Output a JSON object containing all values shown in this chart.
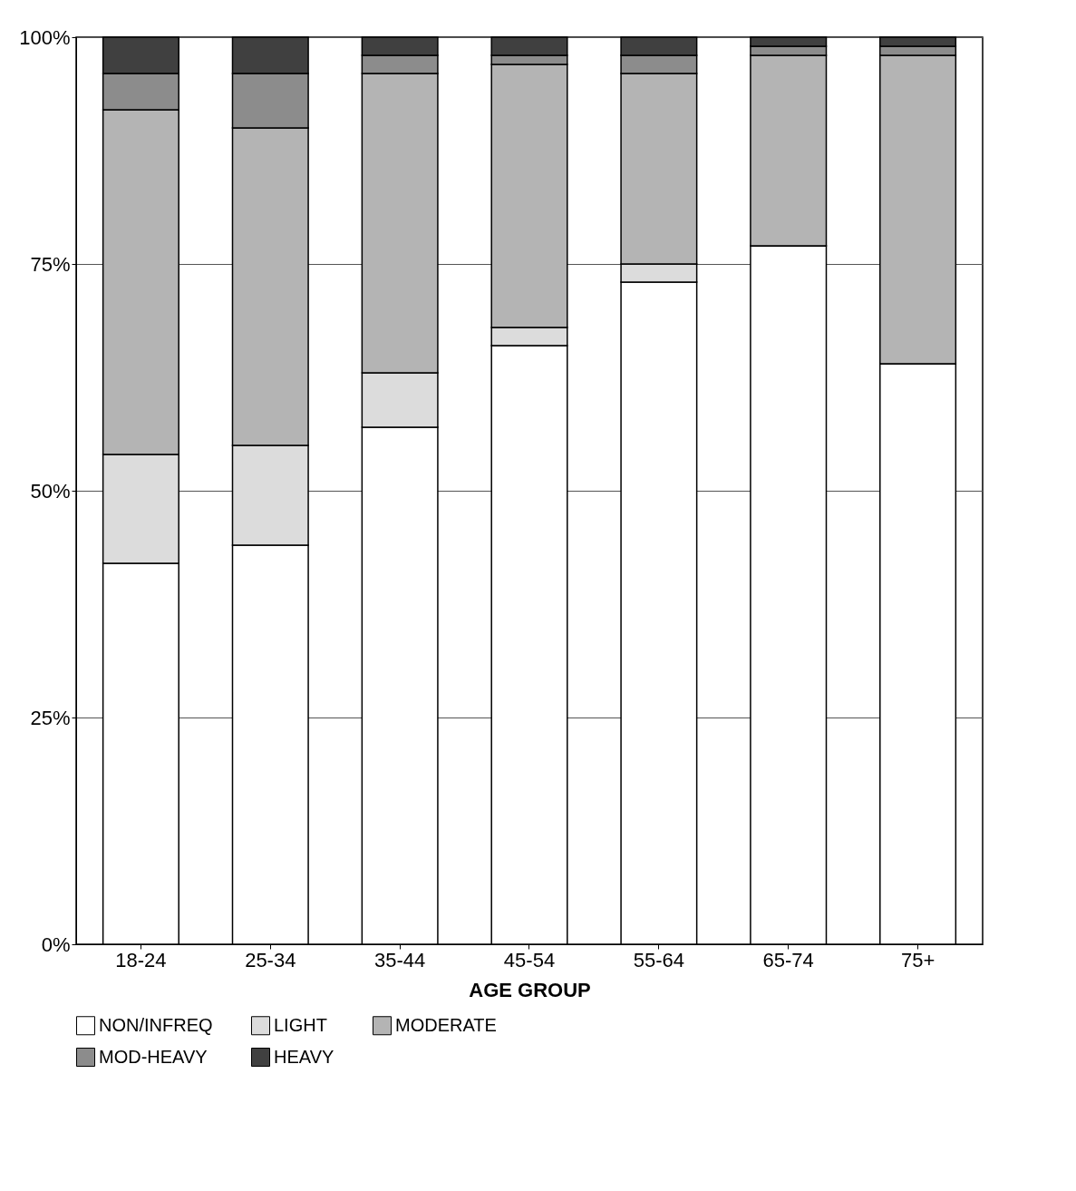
{
  "chart_data": {
    "type": "bar",
    "stacked": true,
    "xlabel": "AGE GROUP",
    "categories": [
      "18-24",
      "25-34",
      "35-44",
      "45-54",
      "55-64",
      "65-74",
      "75+"
    ],
    "series": [
      {
        "name": "NON/INFREQ",
        "color": "#ffffff",
        "values": [
          42,
          44,
          57,
          66,
          73,
          77,
          64
        ]
      },
      {
        "name": "LIGHT",
        "color": "#dcdcdc",
        "values": [
          12,
          11,
          6,
          2,
          2,
          0,
          0
        ]
      },
      {
        "name": "MODERATE",
        "color": "#b4b4b4",
        "values": [
          38,
          35,
          33,
          29,
          21,
          21,
          34
        ]
      },
      {
        "name": "MOD-HEAVY",
        "color": "#8c8c8c",
        "values": [
          4,
          6,
          2,
          1,
          2,
          1,
          1
        ]
      },
      {
        "name": "HEAVY",
        "color": "#404040",
        "values": [
          4,
          4,
          2,
          2,
          2,
          1,
          1
        ]
      }
    ],
    "ylim": [
      0,
      100
    ],
    "yticks": [
      {
        "value": 0,
        "label": "0%"
      },
      {
        "value": 25,
        "label": "25%"
      },
      {
        "value": 50,
        "label": "50%"
      },
      {
        "value": 75,
        "label": "75%"
      },
      {
        "value": 100,
        "label": "100%"
      }
    ],
    "grid": "y",
    "legend": "bottom"
  }
}
